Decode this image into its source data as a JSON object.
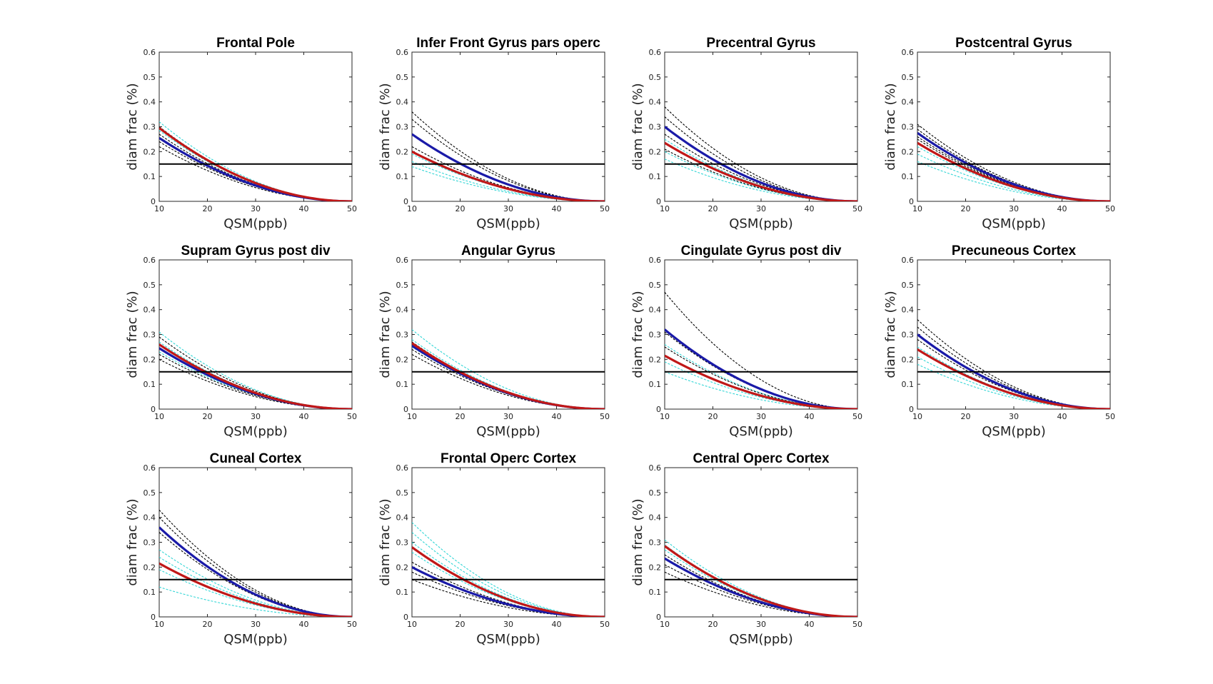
{
  "chart_data": [
    {
      "type": "line",
      "title": "Frontal Pole",
      "xlabel": "QSM(ppb)",
      "ylabel": "diam frac (%)",
      "xlim": [
        10,
        50
      ],
      "ylim": [
        0,
        0.6
      ],
      "xticks": [
        "10",
        "20",
        "30",
        "40",
        "50"
      ],
      "yticks": [
        "0",
        "0.1",
        "0.2",
        "0.3",
        "0.4",
        "0.5",
        "0.6"
      ],
      "threshold": 0.15,
      "series": [
        {
          "color": "#1a1aa8",
          "style": "thick",
          "start": 0.255
        },
        {
          "color": "#c01818",
          "style": "thick",
          "start": 0.295
        },
        {
          "color": "#33d6d6",
          "style": "dashed",
          "start": 0.32
        },
        {
          "color": "#33d6d6",
          "style": "dashed",
          "start": 0.3
        },
        {
          "color": "#33d6d6",
          "style": "dashed",
          "start": 0.285
        },
        {
          "color": "#000000",
          "style": "dashed",
          "start": 0.3
        },
        {
          "color": "#000000",
          "style": "dashed",
          "start": 0.27
        },
        {
          "color": "#000000",
          "style": "dashed",
          "start": 0.24
        },
        {
          "color": "#000000",
          "style": "dashed",
          "start": 0.22
        }
      ]
    },
    {
      "type": "line",
      "title": "Infer Front Gyrus pars operc",
      "xlabel": "QSM(ppb)",
      "ylabel": "diam frac (%)",
      "xlim": [
        10,
        50
      ],
      "ylim": [
        0,
        0.6
      ],
      "xticks": [
        "10",
        "20",
        "30",
        "40",
        "50"
      ],
      "yticks": [
        "0",
        "0.1",
        "0.2",
        "0.3",
        "0.4",
        "0.5",
        "0.6"
      ],
      "threshold": 0.15,
      "series": [
        {
          "color": "#1a1aa8",
          "style": "thick",
          "start": 0.27
        },
        {
          "color": "#c01818",
          "style": "thick",
          "start": 0.2
        },
        {
          "color": "#33d6d6",
          "style": "dashed",
          "start": 0.19
        },
        {
          "color": "#33d6d6",
          "style": "dashed",
          "start": 0.16
        },
        {
          "color": "#33d6d6",
          "style": "dashed",
          "start": 0.14
        },
        {
          "color": "#000000",
          "style": "dashed",
          "start": 0.36
        },
        {
          "color": "#000000",
          "style": "dashed",
          "start": 0.33
        },
        {
          "color": "#000000",
          "style": "dashed",
          "start": 0.22
        },
        {
          "color": "#000000",
          "style": "dashed",
          "start": 0.2
        }
      ]
    },
    {
      "type": "line",
      "title": "Precentral Gyrus",
      "xlabel": "QSM(ppb)",
      "ylabel": "diam frac (%)",
      "xlim": [
        10,
        50
      ],
      "ylim": [
        0,
        0.6
      ],
      "xticks": [
        "10",
        "20",
        "30",
        "40",
        "50"
      ],
      "yticks": [
        "0",
        "0.1",
        "0.2",
        "0.3",
        "0.4",
        "0.5",
        "0.6"
      ],
      "threshold": 0.15,
      "series": [
        {
          "color": "#1a1aa8",
          "style": "thick",
          "start": 0.3
        },
        {
          "color": "#c01818",
          "style": "thick",
          "start": 0.235
        },
        {
          "color": "#33d6d6",
          "style": "dashed",
          "start": 0.25
        },
        {
          "color": "#33d6d6",
          "style": "dashed",
          "start": 0.2
        },
        {
          "color": "#33d6d6",
          "style": "dashed",
          "start": 0.17
        },
        {
          "color": "#000000",
          "style": "dashed",
          "start": 0.38
        },
        {
          "color": "#000000",
          "style": "dashed",
          "start": 0.34
        },
        {
          "color": "#000000",
          "style": "dashed",
          "start": 0.27
        },
        {
          "color": "#000000",
          "style": "dashed",
          "start": 0.21
        }
      ]
    },
    {
      "type": "line",
      "title": "Postcentral Gyrus",
      "xlabel": "QSM(ppb)",
      "ylabel": "diam frac (%)",
      "xlim": [
        10,
        50
      ],
      "ylim": [
        0,
        0.6
      ],
      "xticks": [
        "10",
        "20",
        "30",
        "40",
        "50"
      ],
      "yticks": [
        "0",
        "0.1",
        "0.2",
        "0.3",
        "0.4",
        "0.5",
        "0.6"
      ],
      "threshold": 0.15,
      "series": [
        {
          "color": "#1a1aa8",
          "style": "thick",
          "start": 0.275
        },
        {
          "color": "#c01818",
          "style": "thick",
          "start": 0.235
        },
        {
          "color": "#33d6d6",
          "style": "dashed",
          "start": 0.22
        },
        {
          "color": "#33d6d6",
          "style": "dashed",
          "start": 0.19
        },
        {
          "color": "#33d6d6",
          "style": "dashed",
          "start": 0.16
        },
        {
          "color": "#000000",
          "style": "dashed",
          "start": 0.31
        },
        {
          "color": "#000000",
          "style": "dashed",
          "start": 0.29
        },
        {
          "color": "#000000",
          "style": "dashed",
          "start": 0.26
        },
        {
          "color": "#000000",
          "style": "dashed",
          "start": 0.25
        }
      ]
    },
    {
      "type": "line",
      "title": "Supram Gyrus post div",
      "xlabel": "QSM(ppb)",
      "ylabel": "diam frac (%)",
      "xlim": [
        10,
        50
      ],
      "ylim": [
        0,
        0.6
      ],
      "xticks": [
        "10",
        "20",
        "30",
        "40",
        "50"
      ],
      "yticks": [
        "0",
        "0.1",
        "0.2",
        "0.3",
        "0.4",
        "0.5",
        "0.6"
      ],
      "threshold": 0.15,
      "series": [
        {
          "color": "#1a1aa8",
          "style": "thick",
          "start": 0.245
        },
        {
          "color": "#c01818",
          "style": "thick",
          "start": 0.26
        },
        {
          "color": "#33d6d6",
          "style": "dashed",
          "start": 0.31
        },
        {
          "color": "#33d6d6",
          "style": "dashed",
          "start": 0.27
        },
        {
          "color": "#33d6d6",
          "style": "dashed",
          "start": 0.23
        },
        {
          "color": "#000000",
          "style": "dashed",
          "start": 0.29
        },
        {
          "color": "#000000",
          "style": "dashed",
          "start": 0.26
        },
        {
          "color": "#000000",
          "style": "dashed",
          "start": 0.22
        },
        {
          "color": "#000000",
          "style": "dashed",
          "start": 0.2
        }
      ]
    },
    {
      "type": "line",
      "title": "Angular Gyrus",
      "xlabel": "QSM(ppb)",
      "ylabel": "diam frac (%)",
      "xlim": [
        10,
        50
      ],
      "ylim": [
        0,
        0.6
      ],
      "xticks": [
        "10",
        "20",
        "30",
        "40",
        "50"
      ],
      "yticks": [
        "0",
        "0.1",
        "0.2",
        "0.3",
        "0.4",
        "0.5",
        "0.6"
      ],
      "threshold": 0.15,
      "series": [
        {
          "color": "#1a1aa8",
          "style": "thick",
          "start": 0.255
        },
        {
          "color": "#c01818",
          "style": "thick",
          "start": 0.265
        },
        {
          "color": "#33d6d6",
          "style": "dashed",
          "start": 0.32
        },
        {
          "color": "#33d6d6",
          "style": "dashed",
          "start": 0.28
        },
        {
          "color": "#33d6d6",
          "style": "dashed",
          "start": 0.25
        },
        {
          "color": "#000000",
          "style": "dashed",
          "start": 0.27
        },
        {
          "color": "#000000",
          "style": "dashed",
          "start": 0.24
        },
        {
          "color": "#000000",
          "style": "dashed",
          "start": 0.22
        }
      ]
    },
    {
      "type": "line",
      "title": "Cingulate Gyrus post div",
      "xlabel": "QSM(ppb)",
      "ylabel": "diam frac (%)",
      "xlim": [
        10,
        50
      ],
      "ylim": [
        0,
        0.6
      ],
      "xticks": [
        "10",
        "20",
        "30",
        "40",
        "50"
      ],
      "yticks": [
        "0",
        "0.1",
        "0.2",
        "0.3",
        "0.4",
        "0.5",
        "0.6"
      ],
      "threshold": 0.15,
      "series": [
        {
          "color": "#1a1aa8",
          "style": "thick",
          "start": 0.32
        },
        {
          "color": "#c01818",
          "style": "thick",
          "start": 0.215
        },
        {
          "color": "#33d6d6",
          "style": "dashed",
          "start": 0.26
        },
        {
          "color": "#33d6d6",
          "style": "dashed",
          "start": 0.19
        },
        {
          "color": "#33d6d6",
          "style": "dashed",
          "start": 0.15
        },
        {
          "color": "#000000",
          "style": "dashed",
          "start": 0.47
        },
        {
          "color": "#000000",
          "style": "dashed",
          "start": 0.31
        },
        {
          "color": "#000000",
          "style": "dashed",
          "start": 0.25
        }
      ]
    },
    {
      "type": "line",
      "title": "Precuneous Cortex",
      "xlabel": "QSM(ppb)",
      "ylabel": "diam frac (%)",
      "xlim": [
        10,
        50
      ],
      "ylim": [
        0,
        0.6
      ],
      "xticks": [
        "10",
        "20",
        "30",
        "40",
        "50"
      ],
      "yticks": [
        "0",
        "0.1",
        "0.2",
        "0.3",
        "0.4",
        "0.5",
        "0.6"
      ],
      "threshold": 0.15,
      "series": [
        {
          "color": "#1a1aa8",
          "style": "thick",
          "start": 0.3
        },
        {
          "color": "#c01818",
          "style": "thick",
          "start": 0.24
        },
        {
          "color": "#33d6d6",
          "style": "dashed",
          "start": 0.25
        },
        {
          "color": "#33d6d6",
          "style": "dashed",
          "start": 0.21
        },
        {
          "color": "#33d6d6",
          "style": "dashed",
          "start": 0.18
        },
        {
          "color": "#000000",
          "style": "dashed",
          "start": 0.36
        },
        {
          "color": "#000000",
          "style": "dashed",
          "start": 0.33
        },
        {
          "color": "#000000",
          "style": "dashed",
          "start": 0.28
        }
      ]
    },
    {
      "type": "line",
      "title": "Cuneal Cortex",
      "xlabel": "QSM(ppb)",
      "ylabel": "diam frac (%)",
      "xlim": [
        10,
        50
      ],
      "ylim": [
        0,
        0.6
      ],
      "xticks": [
        "10",
        "20",
        "30",
        "40",
        "50"
      ],
      "yticks": [
        "0",
        "0.1",
        "0.2",
        "0.3",
        "0.4",
        "0.5",
        "0.6"
      ],
      "threshold": 0.15,
      "series": [
        {
          "color": "#1a1aa8",
          "style": "thick",
          "start": 0.36
        },
        {
          "color": "#c01818",
          "style": "thick",
          "start": 0.215
        },
        {
          "color": "#33d6d6",
          "style": "dashed",
          "start": 0.27
        },
        {
          "color": "#33d6d6",
          "style": "dashed",
          "start": 0.24
        },
        {
          "color": "#33d6d6",
          "style": "dashed",
          "start": 0.19
        },
        {
          "color": "#33d6d6",
          "style": "dashed",
          "start": 0.12
        },
        {
          "color": "#000000",
          "style": "dashed",
          "start": 0.43
        },
        {
          "color": "#000000",
          "style": "dashed",
          "start": 0.4
        },
        {
          "color": "#000000",
          "style": "dashed",
          "start": 0.34
        }
      ]
    },
    {
      "type": "line",
      "title": "Frontal Operc Cortex",
      "xlabel": "QSM(ppb)",
      "ylabel": "diam frac (%)",
      "xlim": [
        10,
        50
      ],
      "ylim": [
        0,
        0.6
      ],
      "xticks": [
        "10",
        "20",
        "30",
        "40",
        "50"
      ],
      "yticks": [
        "0",
        "0.1",
        "0.2",
        "0.3",
        "0.4",
        "0.5",
        "0.6"
      ],
      "threshold": 0.15,
      "series": [
        {
          "color": "#1a1aa8",
          "style": "thick",
          "start": 0.2
        },
        {
          "color": "#c01818",
          "style": "thick",
          "start": 0.28
        },
        {
          "color": "#33d6d6",
          "style": "dashed",
          "start": 0.38
        },
        {
          "color": "#33d6d6",
          "style": "dashed",
          "start": 0.34
        },
        {
          "color": "#33d6d6",
          "style": "dashed",
          "start": 0.3
        },
        {
          "color": "#33d6d6",
          "style": "dashed",
          "start": 0.26
        },
        {
          "color": "#000000",
          "style": "dashed",
          "start": 0.22
        },
        {
          "color": "#000000",
          "style": "dashed",
          "start": 0.18
        },
        {
          "color": "#000000",
          "style": "dashed",
          "start": 0.15
        }
      ]
    },
    {
      "type": "line",
      "title": "Central Operc Cortex",
      "xlabel": "QSM(ppb)",
      "ylabel": "diam frac (%)",
      "xlim": [
        10,
        50
      ],
      "ylim": [
        0,
        0.6
      ],
      "xticks": [
        "10",
        "20",
        "30",
        "40",
        "50"
      ],
      "yticks": [
        "0",
        "0.1",
        "0.2",
        "0.3",
        "0.4",
        "0.5",
        "0.6"
      ],
      "threshold": 0.15,
      "series": [
        {
          "color": "#1a1aa8",
          "style": "thick",
          "start": 0.235
        },
        {
          "color": "#c01818",
          "style": "thick",
          "start": 0.285
        },
        {
          "color": "#33d6d6",
          "style": "dashed",
          "start": 0.31
        },
        {
          "color": "#33d6d6",
          "style": "dashed",
          "start": 0.29
        },
        {
          "color": "#33d6d6",
          "style": "dashed",
          "start": 0.27
        },
        {
          "color": "#000000",
          "style": "dashed",
          "start": 0.25
        },
        {
          "color": "#000000",
          "style": "dashed",
          "start": 0.21
        },
        {
          "color": "#000000",
          "style": "dashed",
          "start": 0.18
        }
      ]
    }
  ]
}
